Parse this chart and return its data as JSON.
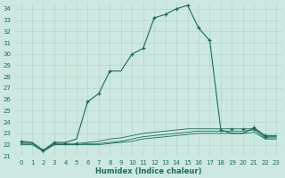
{
  "xlabel": "Humidex (Indice chaleur)",
  "bg_color": "#cce8e0",
  "line_color": "#1a6b5e",
  "grid_color": "#aad4cc",
  "xlim": [
    -0.5,
    23.5
  ],
  "ylim": [
    21.0,
    34.5
  ],
  "x_ticks": [
    0,
    1,
    2,
    3,
    4,
    5,
    6,
    7,
    8,
    9,
    10,
    11,
    12,
    13,
    14,
    15,
    16,
    17,
    18,
    19,
    20,
    21,
    22,
    23
  ],
  "y_ticks": [
    21,
    22,
    23,
    24,
    25,
    26,
    27,
    28,
    29,
    30,
    31,
    32,
    33,
    34
  ],
  "line1_x": [
    0,
    1,
    2,
    3,
    4,
    5,
    6,
    7,
    8,
    9,
    10,
    11,
    12,
    13,
    14,
    15,
    16,
    17,
    18,
    19,
    20,
    21,
    22,
    23
  ],
  "line1_y": [
    22.3,
    22.2,
    21.5,
    22.2,
    22.2,
    22.5,
    25.8,
    26.5,
    28.5,
    28.5,
    30.0,
    30.5,
    33.2,
    33.5,
    34.0,
    34.3,
    32.3,
    31.2,
    23.3,
    23.0,
    23.0,
    23.5,
    22.8,
    22.8
  ],
  "line2_x": [
    0,
    1,
    2,
    3,
    4,
    5,
    6,
    7,
    8,
    9,
    10,
    11,
    12,
    13,
    14,
    15,
    16,
    17,
    18,
    19,
    20,
    21,
    22,
    23
  ],
  "line2_y": [
    22.2,
    22.2,
    21.5,
    22.1,
    22.1,
    22.1,
    22.2,
    22.3,
    22.5,
    22.6,
    22.8,
    23.0,
    23.1,
    23.2,
    23.3,
    23.4,
    23.4,
    23.4,
    23.4,
    23.4,
    23.4,
    23.4,
    22.7,
    22.7
  ],
  "line3_x": [
    0,
    1,
    2,
    3,
    4,
    5,
    6,
    7,
    8,
    9,
    10,
    11,
    12,
    13,
    14,
    15,
    16,
    17,
    18,
    19,
    20,
    21,
    22,
    23
  ],
  "line3_y": [
    22.1,
    22.1,
    21.5,
    22.0,
    22.0,
    22.0,
    22.1,
    22.1,
    22.2,
    22.3,
    22.5,
    22.7,
    22.8,
    22.9,
    23.0,
    23.1,
    23.2,
    23.2,
    23.2,
    23.2,
    23.2,
    23.3,
    22.6,
    22.6
  ],
  "line4_x": [
    0,
    1,
    2,
    3,
    4,
    5,
    6,
    7,
    8,
    9,
    10,
    11,
    12,
    13,
    14,
    15,
    16,
    17,
    18,
    19,
    20,
    21,
    22,
    23
  ],
  "line4_y": [
    22.0,
    22.0,
    21.4,
    22.0,
    22.0,
    22.0,
    22.0,
    22.0,
    22.1,
    22.2,
    22.3,
    22.5,
    22.6,
    22.7,
    22.8,
    22.9,
    23.0,
    23.0,
    23.0,
    23.0,
    23.0,
    23.1,
    22.5,
    22.5
  ],
  "markers_x": [
    0,
    2,
    3,
    6,
    7,
    8,
    10,
    11,
    12,
    13,
    14,
    15,
    16,
    17,
    18,
    21,
    22
  ],
  "markers_y": [
    22.3,
    21.5,
    22.2,
    25.8,
    26.5,
    28.5,
    30.0,
    30.5,
    33.2,
    33.5,
    34.0,
    34.3,
    32.3,
    31.2,
    23.3,
    23.5,
    22.8
  ],
  "flat_markers_x": [
    2,
    3,
    4,
    5,
    19,
    20,
    21,
    22
  ],
  "flat_markers_y": [
    21.5,
    22.1,
    22.1,
    22.1,
    23.4,
    23.4,
    23.4,
    22.7
  ],
  "fontsize_label": 6,
  "fontsize_tick": 5
}
